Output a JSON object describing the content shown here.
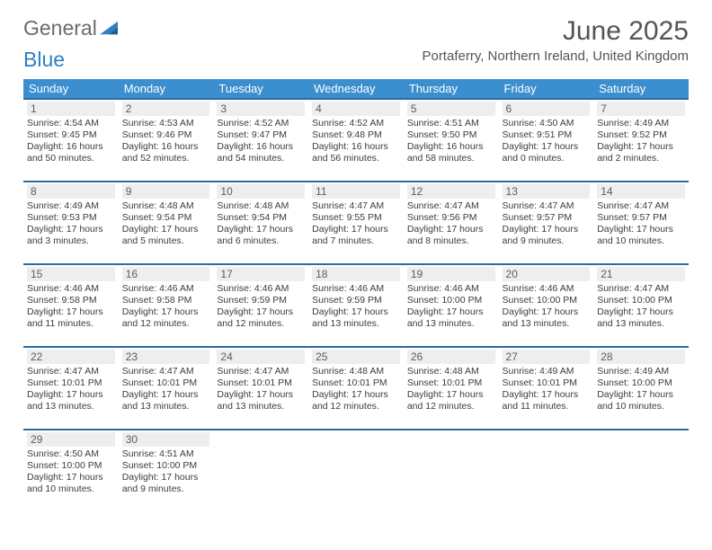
{
  "logo": {
    "text1": "General",
    "text2": "Blue"
  },
  "title": "June 2025",
  "location": "Portaferry, Northern Ireland, United Kingdom",
  "header_bg": "#3c8fcf",
  "border_color": "#2c6aa0",
  "daynum_bg": "#edeeef",
  "weekdays": [
    "Sunday",
    "Monday",
    "Tuesday",
    "Wednesday",
    "Thursday",
    "Friday",
    "Saturday"
  ],
  "days": [
    {
      "n": "1",
      "sr": "4:54 AM",
      "ss": "9:45 PM",
      "dl": "16 hours and 50 minutes."
    },
    {
      "n": "2",
      "sr": "4:53 AM",
      "ss": "9:46 PM",
      "dl": "16 hours and 52 minutes."
    },
    {
      "n": "3",
      "sr": "4:52 AM",
      "ss": "9:47 PM",
      "dl": "16 hours and 54 minutes."
    },
    {
      "n": "4",
      "sr": "4:52 AM",
      "ss": "9:48 PM",
      "dl": "16 hours and 56 minutes."
    },
    {
      "n": "5",
      "sr": "4:51 AM",
      "ss": "9:50 PM",
      "dl": "16 hours and 58 minutes."
    },
    {
      "n": "6",
      "sr": "4:50 AM",
      "ss": "9:51 PM",
      "dl": "17 hours and 0 minutes."
    },
    {
      "n": "7",
      "sr": "4:49 AM",
      "ss": "9:52 PM",
      "dl": "17 hours and 2 minutes."
    },
    {
      "n": "8",
      "sr": "4:49 AM",
      "ss": "9:53 PM",
      "dl": "17 hours and 3 minutes."
    },
    {
      "n": "9",
      "sr": "4:48 AM",
      "ss": "9:54 PM",
      "dl": "17 hours and 5 minutes."
    },
    {
      "n": "10",
      "sr": "4:48 AM",
      "ss": "9:54 PM",
      "dl": "17 hours and 6 minutes."
    },
    {
      "n": "11",
      "sr": "4:47 AM",
      "ss": "9:55 PM",
      "dl": "17 hours and 7 minutes."
    },
    {
      "n": "12",
      "sr": "4:47 AM",
      "ss": "9:56 PM",
      "dl": "17 hours and 8 minutes."
    },
    {
      "n": "13",
      "sr": "4:47 AM",
      "ss": "9:57 PM",
      "dl": "17 hours and 9 minutes."
    },
    {
      "n": "14",
      "sr": "4:47 AM",
      "ss": "9:57 PM",
      "dl": "17 hours and 10 minutes."
    },
    {
      "n": "15",
      "sr": "4:46 AM",
      "ss": "9:58 PM",
      "dl": "17 hours and 11 minutes."
    },
    {
      "n": "16",
      "sr": "4:46 AM",
      "ss": "9:58 PM",
      "dl": "17 hours and 12 minutes."
    },
    {
      "n": "17",
      "sr": "4:46 AM",
      "ss": "9:59 PM",
      "dl": "17 hours and 12 minutes."
    },
    {
      "n": "18",
      "sr": "4:46 AM",
      "ss": "9:59 PM",
      "dl": "17 hours and 13 minutes."
    },
    {
      "n": "19",
      "sr": "4:46 AM",
      "ss": "10:00 PM",
      "dl": "17 hours and 13 minutes."
    },
    {
      "n": "20",
      "sr": "4:46 AM",
      "ss": "10:00 PM",
      "dl": "17 hours and 13 minutes."
    },
    {
      "n": "21",
      "sr": "4:47 AM",
      "ss": "10:00 PM",
      "dl": "17 hours and 13 minutes."
    },
    {
      "n": "22",
      "sr": "4:47 AM",
      "ss": "10:01 PM",
      "dl": "17 hours and 13 minutes."
    },
    {
      "n": "23",
      "sr": "4:47 AM",
      "ss": "10:01 PM",
      "dl": "17 hours and 13 minutes."
    },
    {
      "n": "24",
      "sr": "4:47 AM",
      "ss": "10:01 PM",
      "dl": "17 hours and 13 minutes."
    },
    {
      "n": "25",
      "sr": "4:48 AM",
      "ss": "10:01 PM",
      "dl": "17 hours and 12 minutes."
    },
    {
      "n": "26",
      "sr": "4:48 AM",
      "ss": "10:01 PM",
      "dl": "17 hours and 12 minutes."
    },
    {
      "n": "27",
      "sr": "4:49 AM",
      "ss": "10:01 PM",
      "dl": "17 hours and 11 minutes."
    },
    {
      "n": "28",
      "sr": "4:49 AM",
      "ss": "10:00 PM",
      "dl": "17 hours and 10 minutes."
    },
    {
      "n": "29",
      "sr": "4:50 AM",
      "ss": "10:00 PM",
      "dl": "17 hours and 10 minutes."
    },
    {
      "n": "30",
      "sr": "4:51 AM",
      "ss": "10:00 PM",
      "dl": "17 hours and 9 minutes."
    }
  ],
  "labels": {
    "sunrise": "Sunrise: ",
    "sunset": "Sunset: ",
    "daylight": "Daylight: "
  }
}
